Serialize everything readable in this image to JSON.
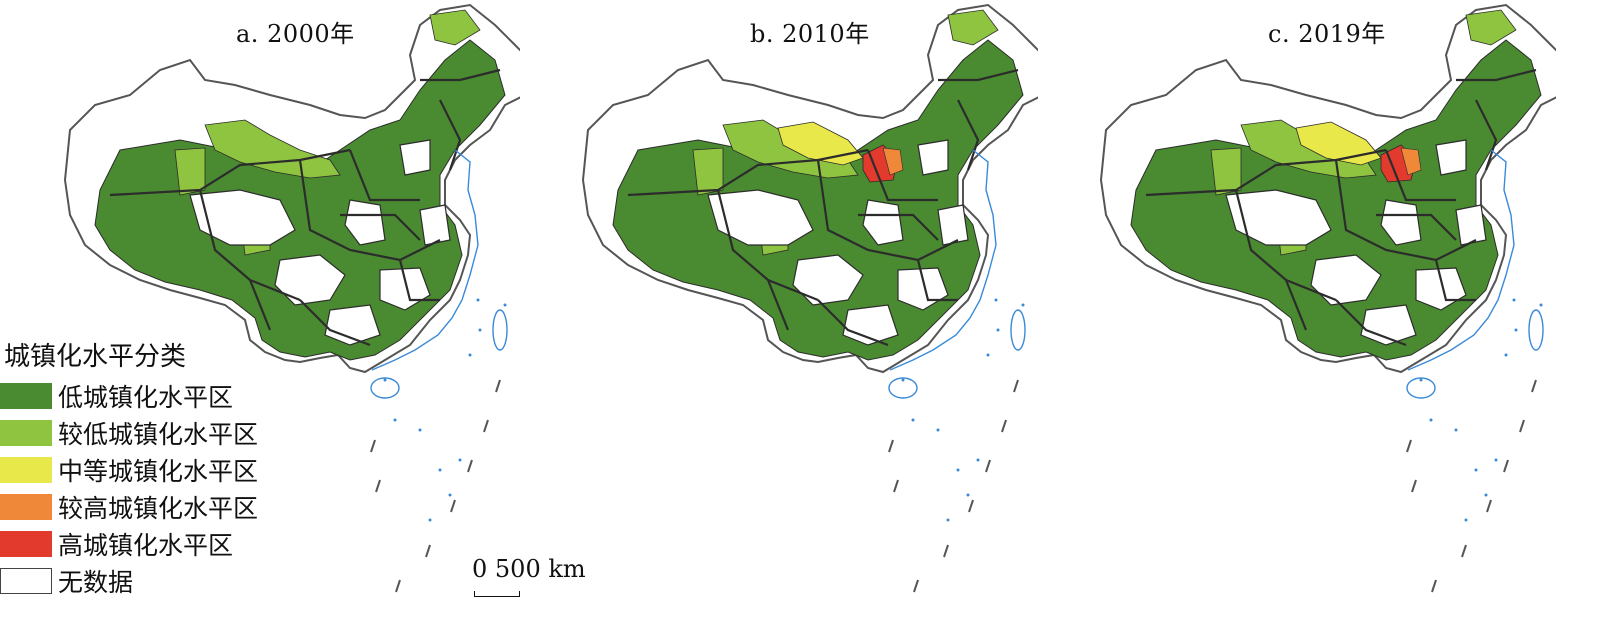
{
  "colors": {
    "low": "#4a8a30",
    "relatively_low": "#8fc440",
    "medium": "#e9e84a",
    "relatively_high": "#f0883a",
    "high": "#e23a2c",
    "no_data": "#ffffff",
    "border": "#2c2c2c",
    "coast": "#3a8ad8"
  },
  "panels": [
    {
      "title": "a. 2000年",
      "year": 2000,
      "has_medium_north": false,
      "has_high_north": false
    },
    {
      "title": "b. 2010年",
      "year": 2010,
      "has_medium_north": true,
      "has_high_north": true
    },
    {
      "title": "c. 2019年",
      "year": 2019,
      "has_medium_north": true,
      "has_high_north": true
    }
  ],
  "legend": {
    "title": "城镇化水平分类",
    "items": [
      {
        "label": "低城镇化水平区",
        "color_key": "low"
      },
      {
        "label": "较低城镇化水平区",
        "color_key": "relatively_low"
      },
      {
        "label": "中等城镇化水平区",
        "color_key": "medium"
      },
      {
        "label": "较高城镇化水平区",
        "color_key": "relatively_high"
      },
      {
        "label": "高城镇化水平区",
        "color_key": "high"
      },
      {
        "label": "无数据",
        "color_key": "no_data"
      }
    ]
  },
  "scale": {
    "text": "0   500 km"
  }
}
